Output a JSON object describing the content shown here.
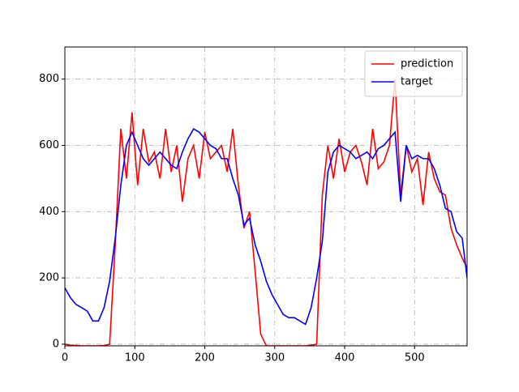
{
  "chart_data": {
    "type": "line",
    "x": [
      0,
      8,
      16,
      24,
      32,
      40,
      48,
      56,
      64,
      72,
      80,
      88,
      96,
      104,
      112,
      120,
      128,
      136,
      144,
      152,
      160,
      168,
      176,
      184,
      192,
      200,
      208,
      216,
      224,
      232,
      240,
      248,
      256,
      264,
      272,
      280,
      288,
      296,
      304,
      312,
      320,
      328,
      336,
      344,
      352,
      360,
      368,
      376,
      384,
      392,
      400,
      408,
      416,
      424,
      432,
      440,
      448,
      456,
      464,
      472,
      480,
      488,
      496,
      504,
      512,
      520,
      528,
      536,
      544,
      552,
      560,
      568,
      575
    ],
    "series": [
      {
        "name": "prediction",
        "color": "#ff0000",
        "values": [
          0,
          -3,
          -4,
          -5,
          -5,
          -5,
          -5,
          -4,
          0,
          300,
          650,
          500,
          700,
          480,
          650,
          550,
          580,
          500,
          650,
          520,
          600,
          430,
          560,
          600,
          500,
          640,
          560,
          580,
          600,
          520,
          650,
          480,
          350,
          400,
          220,
          30,
          -5,
          -5,
          -5,
          -5,
          -5,
          -5,
          -5,
          -5,
          -3,
          0,
          450,
          600,
          500,
          620,
          520,
          580,
          600,
          550,
          480,
          650,
          530,
          550,
          600,
          800,
          450,
          600,
          520,
          560,
          420,
          580,
          500,
          460,
          450,
          350,
          300,
          260,
          230
        ]
      },
      {
        "name": "target",
        "color": "#0000ff",
        "values": [
          170,
          140,
          120,
          110,
          100,
          70,
          70,
          110,
          190,
          320,
          480,
          600,
          640,
          600,
          560,
          540,
          560,
          580,
          560,
          540,
          530,
          580,
          620,
          650,
          640,
          620,
          600,
          590,
          560,
          560,
          500,
          450,
          360,
          380,
          300,
          250,
          190,
          150,
          120,
          90,
          80,
          80,
          70,
          60,
          110,
          200,
          310,
          520,
          580,
          600,
          590,
          580,
          560,
          570,
          580,
          560,
          590,
          600,
          620,
          640,
          430,
          600,
          560,
          570,
          560,
          560,
          530,
          480,
          410,
          400,
          340,
          320,
          200
        ]
      }
    ],
    "xlim": [
      0,
      575
    ],
    "ylim": [
      -5,
      897
    ],
    "xticks": [
      0,
      100,
      200,
      300,
      400,
      500
    ],
    "yticks": [
      0,
      200,
      400,
      600,
      800
    ],
    "grid": true,
    "legend": "upper right"
  }
}
